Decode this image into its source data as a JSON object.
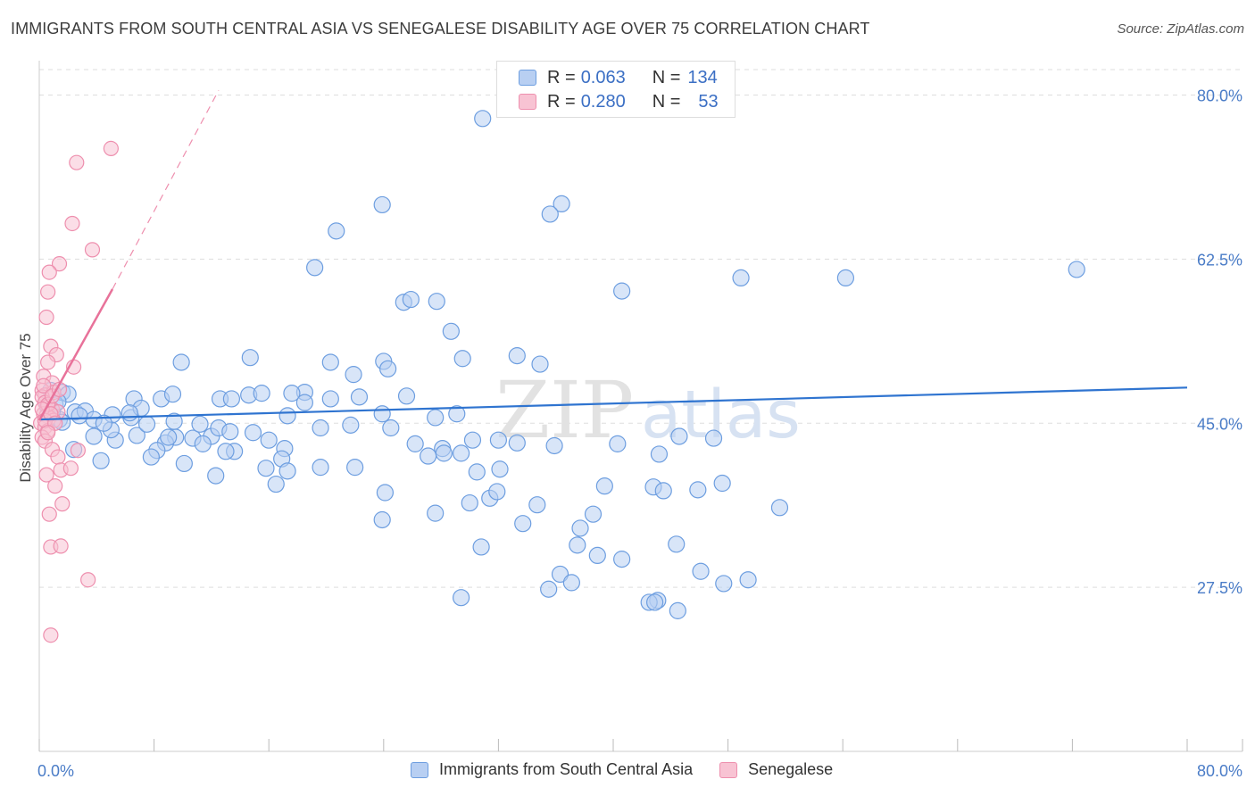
{
  "title": "IMMIGRANTS FROM SOUTH CENTRAL ASIA VS SENEGALESE DISABILITY AGE OVER 75 CORRELATION CHART",
  "source": "Source: ZipAtlas.com",
  "colors": {
    "blue_fill": "#b8cff2",
    "blue_stroke": "#6d9ee0",
    "blue_line": "#2f74d0",
    "pink_fill": "#f8c3d3",
    "pink_stroke": "#ee8fae",
    "pink_line": "#e8729a",
    "grid": "#dddddd",
    "axis_text": "#4a7cc7"
  },
  "legend": {
    "rows": [
      {
        "r_label": "R = ",
        "r_value": "0.063",
        "n_label": "N = ",
        "n_value": "134"
      },
      {
        "r_label": "R = ",
        "r_value": "0.280",
        "n_label": "N = ",
        "n_value": "53"
      }
    ]
  },
  "chart_data": {
    "type": "scatter",
    "title": "IMMIGRANTS FROM SOUTH CENTRAL ASIA VS SENEGALESE DISABILITY AGE OVER 75 CORRELATION CHART",
    "xlabel": "",
    "ylabel": "Disability Age Over 75",
    "xlim": [
      0,
      80
    ],
    "ylim": [
      10,
      83
    ],
    "x_tick_labels": [
      "0.0%",
      "80.0%"
    ],
    "y_ticks": [
      27.5,
      45.0,
      62.5,
      80.0
    ],
    "y_tick_labels": [
      "27.5%",
      "45.0%",
      "62.5%",
      "80.0%"
    ],
    "watermark": "ZIPatlas",
    "series": [
      {
        "name": "Immigrants from South Central Asia",
        "color": "#6d9ee0",
        "r": 0.063,
        "n": 134,
        "trend": {
          "x": [
            0.0,
            80.0
          ],
          "y": [
            45.4,
            48.8
          ]
        },
        "points": [
          [
            30.9,
            77.5
          ],
          [
            23.9,
            68.3
          ],
          [
            36.4,
            68.4
          ],
          [
            35.6,
            67.3
          ],
          [
            20.7,
            65.5
          ],
          [
            19.2,
            61.6
          ],
          [
            48.9,
            60.5
          ],
          [
            56.2,
            60.5
          ],
          [
            40.6,
            59.1
          ],
          [
            27.7,
            58.0
          ],
          [
            72.3,
            61.4
          ],
          [
            25.4,
            57.9
          ],
          [
            25.9,
            58.2
          ],
          [
            28.7,
            54.8
          ],
          [
            14.7,
            52.0
          ],
          [
            9.9,
            51.5
          ],
          [
            14.6,
            48.0
          ],
          [
            18.5,
            48.3
          ],
          [
            17.3,
            45.8
          ],
          [
            24.5,
            44.5
          ],
          [
            14.9,
            44.0
          ],
          [
            13.6,
            42.0
          ],
          [
            12.0,
            43.6
          ],
          [
            24.0,
            51.6
          ],
          [
            20.3,
            51.5
          ],
          [
            29.5,
            51.9
          ],
          [
            33.3,
            52.2
          ],
          [
            34.9,
            51.3
          ],
          [
            24.3,
            50.8
          ],
          [
            21.9,
            50.2
          ],
          [
            22.3,
            47.8
          ],
          [
            23.9,
            46.0
          ],
          [
            21.7,
            44.8
          ],
          [
            19.6,
            44.5
          ],
          [
            25.6,
            47.9
          ],
          [
            27.6,
            45.6
          ],
          [
            29.1,
            46.0
          ],
          [
            32.0,
            43.2
          ],
          [
            30.2,
            43.2
          ],
          [
            28.1,
            42.3
          ],
          [
            26.2,
            42.8
          ],
          [
            17.1,
            42.3
          ],
          [
            16.5,
            38.5
          ],
          [
            9.5,
            43.5
          ],
          [
            10.7,
            43.4
          ],
          [
            10.1,
            40.7
          ],
          [
            11.4,
            42.8
          ],
          [
            8.8,
            42.9
          ],
          [
            8.2,
            42.1
          ],
          [
            7.8,
            41.4
          ],
          [
            6.8,
            43.7
          ],
          [
            5.3,
            43.2
          ],
          [
            5.0,
            44.3
          ],
          [
            4.3,
            41.0
          ],
          [
            3.8,
            43.6
          ],
          [
            2.4,
            42.2
          ],
          [
            1.4,
            45.4
          ],
          [
            1.6,
            45.1
          ],
          [
            2.5,
            46.2
          ],
          [
            0.9,
            46.3
          ],
          [
            3.2,
            46.3
          ],
          [
            6.6,
            47.6
          ],
          [
            8.5,
            47.6
          ],
          [
            9.3,
            48.1
          ],
          [
            12.6,
            47.6
          ],
          [
            13.4,
            47.6
          ],
          [
            15.5,
            48.2
          ],
          [
            17.6,
            48.2
          ],
          [
            18.5,
            47.2
          ],
          [
            20.3,
            47.6
          ],
          [
            6.4,
            45.6
          ],
          [
            7.1,
            46.6
          ],
          [
            5.1,
            45.9
          ],
          [
            3.8,
            45.4
          ],
          [
            2.8,
            45.8
          ],
          [
            4.5,
            45.0
          ],
          [
            1.1,
            47.0
          ],
          [
            0.6,
            46.8
          ],
          [
            1.6,
            48.3
          ],
          [
            2.0,
            48.1
          ],
          [
            1.3,
            47.3
          ],
          [
            0.8,
            48.5
          ],
          [
            9.0,
            43.5
          ],
          [
            7.5,
            44.9
          ],
          [
            11.2,
            44.9
          ],
          [
            12.5,
            44.5
          ],
          [
            13.3,
            44.1
          ],
          [
            9.4,
            45.2
          ],
          [
            6.3,
            46.1
          ],
          [
            16.0,
            43.2
          ],
          [
            16.9,
            41.2
          ],
          [
            15.8,
            40.2
          ],
          [
            17.3,
            39.9
          ],
          [
            13.0,
            42.0
          ],
          [
            12.3,
            39.4
          ],
          [
            19.6,
            40.3
          ],
          [
            22.0,
            40.3
          ],
          [
            24.1,
            37.6
          ],
          [
            27.6,
            35.4
          ],
          [
            30.0,
            36.5
          ],
          [
            31.4,
            37.0
          ],
          [
            33.7,
            34.3
          ],
          [
            34.7,
            36.3
          ],
          [
            38.6,
            35.3
          ],
          [
            37.7,
            33.8
          ],
          [
            39.4,
            38.3
          ],
          [
            42.8,
            38.2
          ],
          [
            45.9,
            37.9
          ],
          [
            27.1,
            41.5
          ],
          [
            28.2,
            41.8
          ],
          [
            29.4,
            41.8
          ],
          [
            32.1,
            40.1
          ],
          [
            30.5,
            39.8
          ],
          [
            33.3,
            42.9
          ],
          [
            35.9,
            42.6
          ],
          [
            40.3,
            42.8
          ],
          [
            44.6,
            43.6
          ],
          [
            47.0,
            43.4
          ],
          [
            43.2,
            41.7
          ],
          [
            31.9,
            37.7
          ],
          [
            30.8,
            31.8
          ],
          [
            36.3,
            28.9
          ],
          [
            43.1,
            26.1
          ],
          [
            47.7,
            27.9
          ],
          [
            51.6,
            36.0
          ],
          [
            35.5,
            27.3
          ],
          [
            37.1,
            28.0
          ],
          [
            29.4,
            26.4
          ],
          [
            43.5,
            37.8
          ],
          [
            47.6,
            38.6
          ],
          [
            42.5,
            25.9
          ],
          [
            23.9,
            34.7
          ],
          [
            44.4,
            32.1
          ],
          [
            46.1,
            29.2
          ],
          [
            38.9,
            30.9
          ],
          [
            40.6,
            30.5
          ],
          [
            37.5,
            32.0
          ],
          [
            42.9,
            25.9
          ],
          [
            44.5,
            25.0
          ],
          [
            49.4,
            28.3
          ]
        ]
      },
      {
        "name": "Senegalese",
        "color": "#ee8fae",
        "r": 0.28,
        "n": 53,
        "trend": {
          "x": [
            0.0,
            5.1
          ],
          "y": [
            45.3,
            59.3
          ]
        },
        "trend_extended": {
          "x": [
            5.1,
            12.5
          ],
          "y": [
            59.3,
            80.5
          ]
        },
        "points": [
          [
            5.0,
            74.3
          ],
          [
            2.6,
            72.8
          ],
          [
            2.3,
            66.3
          ],
          [
            3.7,
            63.5
          ],
          [
            1.4,
            62.0
          ],
          [
            0.7,
            61.1
          ],
          [
            0.6,
            59.0
          ],
          [
            0.5,
            56.3
          ],
          [
            0.8,
            53.2
          ],
          [
            1.2,
            52.3
          ],
          [
            0.6,
            51.5
          ],
          [
            0.3,
            50.0
          ],
          [
            2.4,
            51.0
          ],
          [
            0.9,
            49.3
          ],
          [
            0.2,
            48.5
          ],
          [
            0.4,
            48.0
          ],
          [
            1.0,
            48.3
          ],
          [
            0.2,
            47.8
          ],
          [
            0.4,
            47.2
          ],
          [
            0.6,
            46.8
          ],
          [
            0.9,
            46.5
          ],
          [
            1.3,
            46.2
          ],
          [
            0.3,
            46.0
          ],
          [
            0.5,
            45.8
          ],
          [
            0.7,
            45.6
          ],
          [
            1.0,
            45.3
          ],
          [
            0.1,
            45.0
          ],
          [
            0.4,
            44.6
          ],
          [
            0.6,
            44.2
          ],
          [
            0.2,
            43.5
          ],
          [
            0.4,
            43.1
          ],
          [
            0.9,
            42.2
          ],
          [
            1.3,
            41.4
          ],
          [
            2.7,
            42.1
          ],
          [
            1.5,
            40.0
          ],
          [
            2.2,
            40.2
          ],
          [
            0.5,
            39.5
          ],
          [
            1.1,
            38.3
          ],
          [
            1.6,
            36.4
          ],
          [
            0.7,
            35.3
          ],
          [
            0.8,
            31.8
          ],
          [
            1.5,
            31.9
          ],
          [
            3.4,
            28.3
          ],
          [
            0.8,
            22.4
          ],
          [
            0.3,
            49.0
          ],
          [
            0.6,
            47.0
          ],
          [
            0.2,
            46.5
          ],
          [
            0.9,
            47.9
          ],
          [
            1.4,
            48.6
          ],
          [
            0.4,
            45.3
          ],
          [
            0.8,
            46.0
          ],
          [
            1.1,
            45.0
          ],
          [
            0.6,
            44.0
          ]
        ]
      }
    ],
    "legend_position": "top-center"
  }
}
